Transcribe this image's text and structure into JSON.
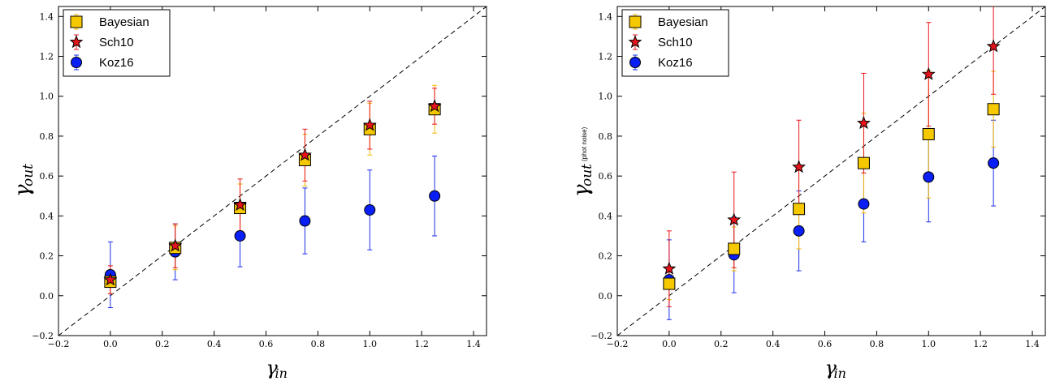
{
  "chart_data": [
    {
      "type": "scatter",
      "xlabel": "γ",
      "xlabel_sub": "in",
      "ylabel": "γ",
      "ylabel_sub": "out",
      "ylabel_note": "",
      "xlim": [
        -0.2,
        1.45
      ],
      "ylim": [
        -0.2,
        1.45
      ],
      "xticks": [
        -0.2,
        0.0,
        0.2,
        0.4,
        0.6,
        0.8,
        1.0,
        1.2,
        1.4
      ],
      "yticks": [
        -0.2,
        0.0,
        0.2,
        0.4,
        0.6,
        0.8,
        1.0,
        1.2,
        1.4
      ],
      "xtick_labels": [
        "−0.2",
        "0.0",
        "0.2",
        "0.4",
        "0.6",
        "0.8",
        "1.0",
        "1.2",
        "1.4"
      ],
      "ytick_labels": [
        "−0.2",
        "0.0",
        "0.2",
        "0.4",
        "0.6",
        "0.8",
        "1.0",
        "1.2",
        "1.4"
      ],
      "reference_line": "y = x (dashed)",
      "legend_position": "upper-left",
      "series": [
        {
          "name": "Bayesian",
          "marker": "square",
          "color": "#f5c800",
          "errcolor": "#f5b800",
          "x": [
            0.0,
            0.25,
            0.5,
            0.75,
            1.0,
            1.25
          ],
          "y": [
            0.07,
            0.24,
            0.44,
            0.68,
            0.835,
            0.935
          ],
          "err": [
            0.06,
            0.11,
            0.12,
            0.13,
            0.13,
            0.12
          ]
        },
        {
          "name": "Sch10",
          "marker": "star",
          "color": "#e8141b",
          "errcolor": "#e8141b",
          "x": [
            0.0,
            0.25,
            0.5,
            0.75,
            1.0,
            1.25
          ],
          "y": [
            0.08,
            0.25,
            0.455,
            0.705,
            0.855,
            0.95
          ],
          "err": [
            0.07,
            0.11,
            0.13,
            0.13,
            0.12,
            0.09
          ]
        },
        {
          "name": "Koz16",
          "marker": "circle",
          "color": "#0a1ff5",
          "errcolor": "#1a2fe8",
          "x": [
            0.0,
            0.25,
            0.5,
            0.75,
            1.0,
            1.25
          ],
          "y": [
            0.105,
            0.22,
            0.3,
            0.375,
            0.43,
            0.5
          ],
          "err": [
            0.165,
            0.14,
            0.155,
            0.165,
            0.2,
            0.2
          ]
        }
      ]
    },
    {
      "type": "scatter",
      "xlabel": "γ",
      "xlabel_sub": "in",
      "ylabel": "γ",
      "ylabel_sub": "out",
      "ylabel_note": "(phot noise)",
      "xlim": [
        -0.2,
        1.45
      ],
      "ylim": [
        -0.2,
        1.45
      ],
      "xticks": [
        -0.2,
        0.0,
        0.2,
        0.4,
        0.6,
        0.8,
        1.0,
        1.2,
        1.4
      ],
      "yticks": [
        -0.2,
        0.0,
        0.2,
        0.4,
        0.6,
        0.8,
        1.0,
        1.2,
        1.4
      ],
      "xtick_labels": [
        "−0.2",
        "0.0",
        "0.2",
        "0.4",
        "0.6",
        "0.8",
        "1.0",
        "1.2",
        "1.4"
      ],
      "ytick_labels": [
        "−0.2",
        "0.0",
        "0.2",
        "0.4",
        "0.6",
        "0.8",
        "1.0",
        "1.2",
        "1.4"
      ],
      "reference_line": "y = x (dashed)",
      "legend_position": "upper-left",
      "series": [
        {
          "name": "Bayesian",
          "marker": "square",
          "color": "#f5c800",
          "errcolor": "#f5b800",
          "x": [
            0.0,
            0.25,
            0.5,
            0.75,
            1.0,
            1.25
          ],
          "y": [
            0.06,
            0.235,
            0.435,
            0.665,
            0.81,
            0.935
          ],
          "err": [
            0.08,
            0.11,
            0.2,
            0.25,
            0.32,
            0.19
          ]
        },
        {
          "name": "Sch10",
          "marker": "star",
          "color": "#e8141b",
          "errcolor": "#e8141b",
          "x": [
            0.0,
            0.25,
            0.5,
            0.75,
            1.0,
            1.25
          ],
          "y": [
            0.135,
            0.38,
            0.645,
            0.865,
            1.11,
            1.25
          ],
          "err": [
            0.19,
            0.24,
            0.235,
            0.25,
            0.26,
            0.24
          ]
        },
        {
          "name": "Koz16",
          "marker": "circle",
          "color": "#0a1ff5",
          "errcolor": "#1a2fe8",
          "x": [
            0.0,
            0.25,
            0.5,
            0.75,
            1.0,
            1.25
          ],
          "y": [
            0.08,
            0.205,
            0.325,
            0.46,
            0.595,
            0.665
          ],
          "err": [
            0.2,
            0.19,
            0.2,
            0.19,
            0.225,
            0.215
          ]
        }
      ]
    }
  ]
}
